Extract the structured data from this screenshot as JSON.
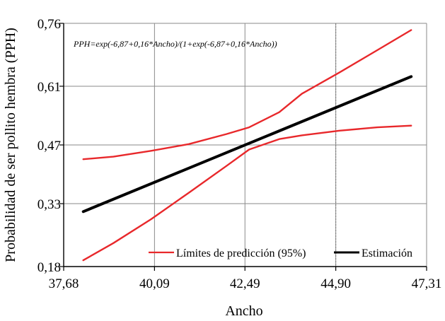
{
  "chart_data": {
    "type": "line",
    "xlabel": "Ancho",
    "ylabel": "Probabilidad de ser pollito hembra (PPH)",
    "annotation": "PPH=exp(-6,87+0,16*Ancho)/(1+exp(-6,87+0,16*Ancho))",
    "xlim": [
      37.68,
      47.31
    ],
    "ylim": [
      0.18,
      0.76
    ],
    "x_ticks": [
      37.68,
      40.09,
      42.49,
      44.9,
      47.31
    ],
    "x_tick_labels": [
      "37,68",
      "40,09",
      "42,49",
      "44,90",
      "47,31"
    ],
    "y_ticks": [
      0.18,
      0.33,
      0.47,
      0.61,
      0.76
    ],
    "y_tick_labels": [
      "0,18",
      "0,33",
      "0,47",
      "0,61",
      "0,76"
    ],
    "grid": true,
    "reference_line_x": 44.9,
    "legend_position": "bottom-right",
    "series": [
      {
        "name": "Límites de predicción (95%)",
        "role": "upper",
        "color": "#e8282b",
        "x": [
          38.2,
          39.0,
          40.0,
          41.0,
          42.0,
          42.6,
          43.4,
          44.0,
          45.0,
          46.0,
          46.9
        ],
        "y": [
          0.436,
          0.442,
          0.456,
          0.472,
          0.496,
          0.512,
          0.548,
          0.592,
          0.643,
          0.696,
          0.744
        ]
      },
      {
        "name": "Límites de predicción (95%)",
        "role": "lower",
        "color": "#e8282b",
        "x": [
          38.2,
          39.0,
          40.0,
          41.0,
          42.0,
          42.6,
          43.4,
          44.0,
          45.0,
          46.0,
          46.9
        ],
        "y": [
          0.195,
          0.236,
          0.293,
          0.356,
          0.42,
          0.459,
          0.484,
          0.493,
          0.504,
          0.512,
          0.516
        ]
      },
      {
        "name": "Estimación",
        "role": "estimate",
        "color": "#000000",
        "x": [
          38.2,
          46.9
        ],
        "y": [
          0.311,
          0.633
        ]
      }
    ]
  }
}
